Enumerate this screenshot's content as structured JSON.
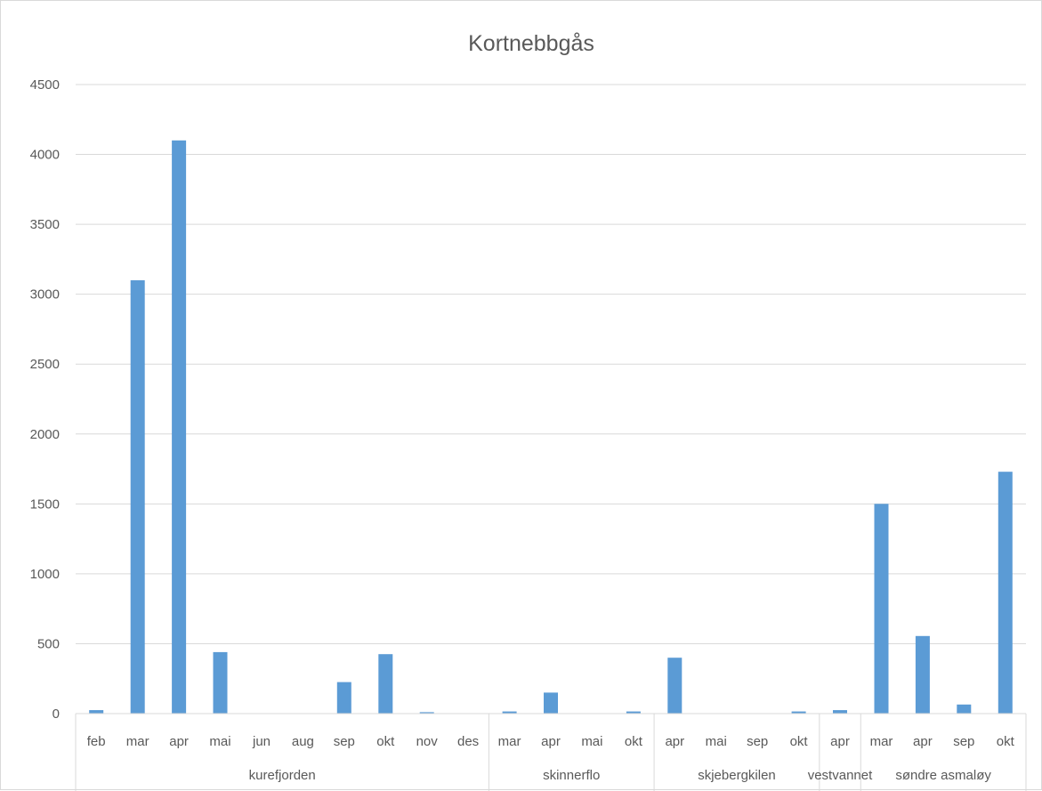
{
  "chart_data": {
    "type": "bar",
    "title": "Kortnebbgås",
    "xlabel": "",
    "ylabel": "",
    "ylim": [
      0,
      4500
    ],
    "yticks": [
      0,
      500,
      1000,
      1500,
      2000,
      2500,
      3000,
      3500,
      4000,
      4500
    ],
    "grid": true,
    "legend": "none",
    "bar_color": "#5b9bd5",
    "groups": [
      {
        "name": "kurefjorden",
        "categories": [
          "feb",
          "mar",
          "apr",
          "mai",
          "jun",
          "aug",
          "sep",
          "okt",
          "nov",
          "des"
        ],
        "values": [
          25,
          3100,
          4100,
          440,
          0,
          0,
          225,
          425,
          10,
          0
        ]
      },
      {
        "name": "skinnerflo",
        "categories": [
          "mar",
          "apr",
          "mai",
          "okt"
        ],
        "values": [
          15,
          150,
          0,
          15
        ]
      },
      {
        "name": "skjebergkilen",
        "categories": [
          "apr",
          "mai",
          "sep",
          "okt"
        ],
        "values": [
          400,
          0,
          0,
          15
        ]
      },
      {
        "name": "vestvannet",
        "categories": [
          "apr"
        ],
        "values": [
          25
        ]
      },
      {
        "name": "søndre asmaløy",
        "categories": [
          "mar",
          "apr",
          "sep",
          "okt"
        ],
        "values": [
          1500,
          555,
          65,
          1730
        ]
      }
    ]
  }
}
